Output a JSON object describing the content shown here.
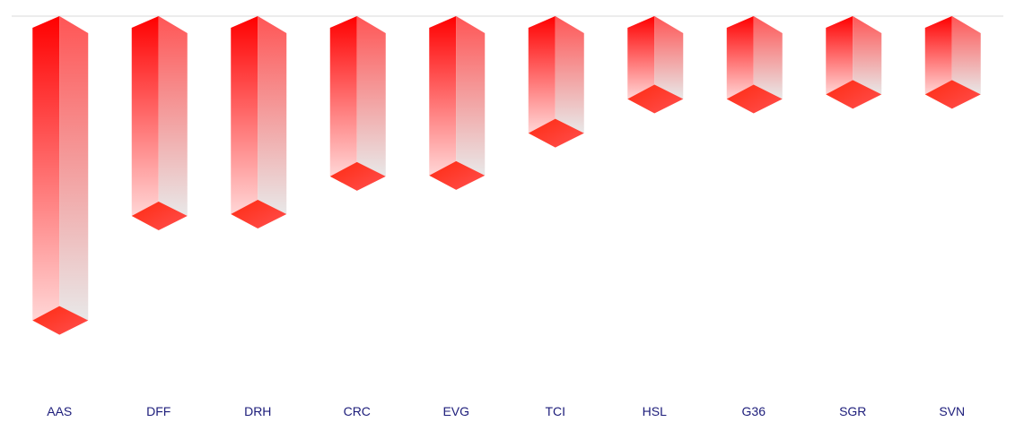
{
  "chart_data": {
    "type": "bar",
    "style": "3d-column",
    "categories": [
      "AAS",
      "DFF",
      "DRH",
      "CRC",
      "EVG",
      "TCI",
      "HSL",
      "G36",
      "SGR",
      "SVN"
    ],
    "values": [
      -3.38,
      -2.22,
      -2.2,
      -1.78,
      -1.77,
      -1.3,
      -0.92,
      -0.92,
      -0.87,
      -0.87
    ],
    "title": "",
    "xlabel": "",
    "ylabel": "",
    "ylim": [
      -4.2,
      0
    ],
    "grid": false,
    "legend": "none",
    "colors": {
      "front_top": "#ff0000",
      "front_bottom": "#ffd6d6",
      "side_top": "#ff5555",
      "side_bottom": "#e8e8e8",
      "cap": "#ff3a2a",
      "label": "#1c1c7a",
      "baseline": "#d9d9d9"
    }
  }
}
